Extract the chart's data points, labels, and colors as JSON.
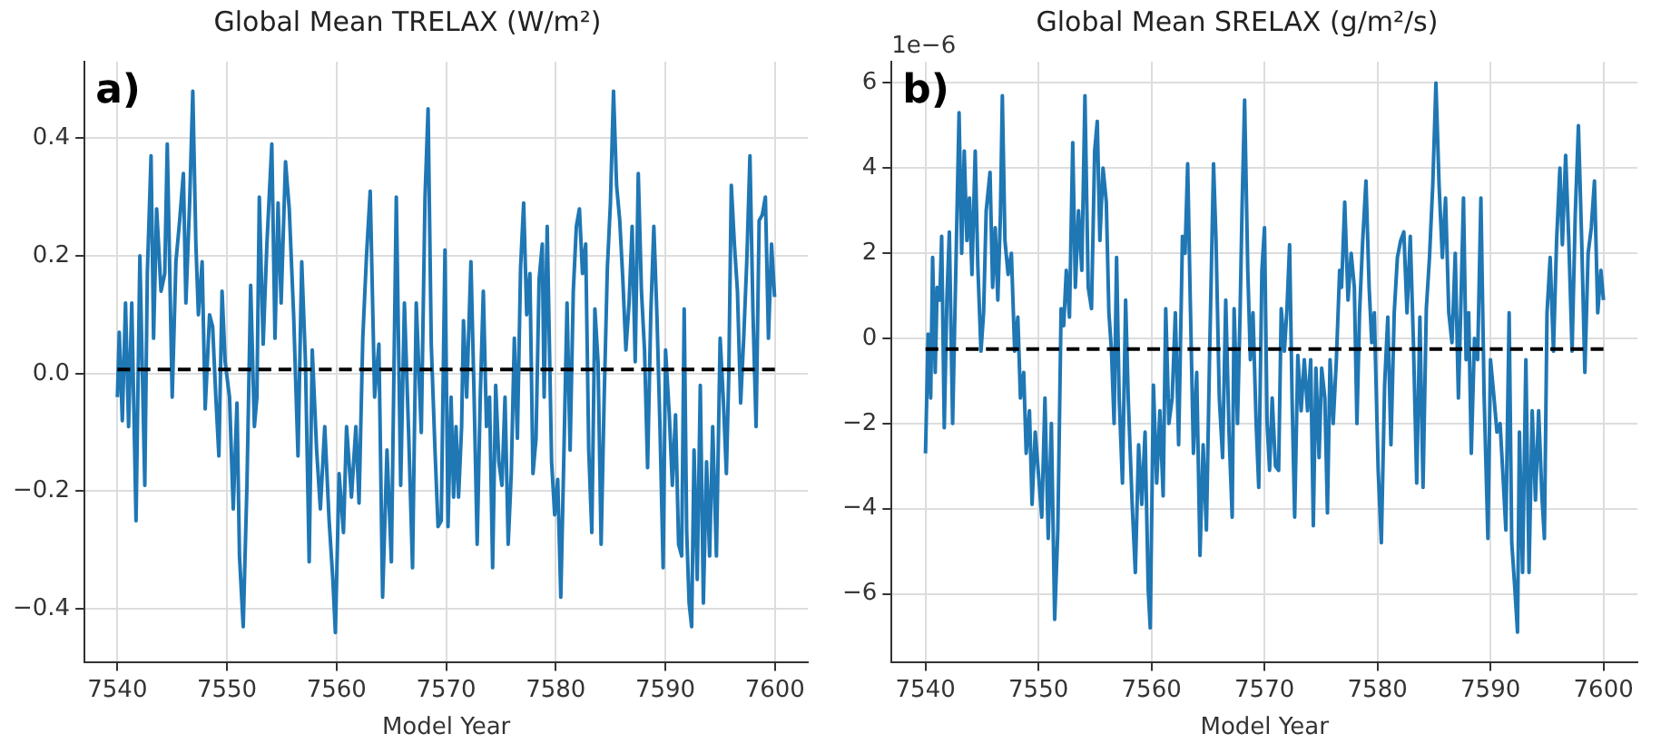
{
  "chart_data": [
    {
      "type": "line",
      "title": "Global Mean TRELAX (W/m²)",
      "xlabel": "Model Year",
      "annotations": [
        "a)"
      ],
      "grid": true,
      "marker": "none",
      "xlim": [
        7537,
        7603
      ],
      "xticks": [
        7540,
        7550,
        7560,
        7570,
        7580,
        7590,
        7600
      ],
      "ylim": [
        -0.49,
        0.53
      ],
      "yticks": [
        {
          "value": -0.4,
          "label": "−0.4"
        },
        {
          "value": -0.2,
          "label": "−0.2"
        },
        {
          "value": 0,
          "label": "0.0"
        },
        0.2,
        0.4
      ],
      "series": [
        {
          "color": "#1f77b4",
          "x": [
            7540.0,
            7540.17,
            7540.45,
            7540.74,
            7541.02,
            7541.31,
            7541.7,
            7542.05,
            7542.5,
            7542.73,
            7543.07,
            7543.3,
            7543.58,
            7543.98,
            7544.32,
            7544.55,
            7545.0,
            7545.34,
            7545.68,
            7546.02,
            7546.25,
            7546.59,
            7546.88,
            7547.16,
            7547.39,
            7547.73,
            7548.01,
            7548.41,
            7548.69,
            7548.98,
            7549.26,
            7549.55,
            7549.83,
            7550.23,
            7550.57,
            7550.91,
            7551.14,
            7551.48,
            7551.82,
            7552.16,
            7552.5,
            7552.73,
            7552.95,
            7553.3,
            7553.64,
            7554.09,
            7554.38,
            7554.66,
            7554.94,
            7555.34,
            7555.68,
            7556.08,
            7556.48,
            7556.82,
            7557.16,
            7557.5,
            7557.78,
            7558.18,
            7558.52,
            7558.92,
            7559.32,
            7559.66,
            7559.89,
            7560.23,
            7560.63,
            7560.91,
            7561.36,
            7561.76,
            7562.05,
            7562.39,
            7562.73,
            7563.07,
            7563.47,
            7563.86,
            7564.2,
            7564.6,
            7565.0,
            7565.45,
            7565.85,
            7566.19,
            7566.59,
            7566.93,
            7567.27,
            7567.73,
            7568.07,
            7568.35,
            7568.64,
            7568.98,
            7569.26,
            7569.55,
            7569.89,
            7570.17,
            7570.45,
            7570.68,
            7570.9,
            7571.13,
            7571.41,
            7571.58,
            7571.87,
            7572.26,
            7572.55,
            7572.83,
            7573.11,
            7573.39,
            7573.68,
            7573.96,
            7574.24,
            7574.52,
            7574.81,
            7575.09,
            7575.37,
            7575.66,
            7575.94,
            7576.22,
            7576.5,
            7576.79,
            7577.07,
            7577.35,
            7577.64,
            7577.92,
            7578.2,
            7578.48,
            7578.77,
            7578.94,
            7579.22,
            7579.62,
            7579.9,
            7580.18,
            7580.46,
            7580.75,
            7581.03,
            7581.31,
            7581.6,
            7581.88,
            7582.16,
            7582.44,
            7582.73,
            7583.01,
            7583.29,
            7583.57,
            7583.86,
            7584.14,
            7584.42,
            7584.71,
            7584.99,
            7585.27,
            7585.55,
            7585.84,
            7586.12,
            7586.4,
            7586.69,
            7586.97,
            7587.25,
            7587.53,
            7587.82,
            7588.1,
            7588.38,
            7588.67,
            7588.95,
            7589.23,
            7589.51,
            7589.8,
            7590.02,
            7590.36,
            7590.64,
            7590.93,
            7591.21,
            7591.49,
            7591.72,
            7591.95,
            7592.17,
            7592.4,
            7592.62,
            7592.91,
            7593.19,
            7593.47,
            7593.76,
            7594.04,
            7594.32,
            7594.66,
            7595.0,
            7595.28,
            7595.57,
            7595.79,
            7596.02,
            7596.3,
            7596.58,
            7596.87,
            7597.15,
            7597.43,
            7597.72,
            7598.0,
            7598.28,
            7598.56,
            7598.85,
            7599.13,
            7599.41,
            7599.69,
            7599.97
          ],
          "values": [
            -0.04,
            0.07,
            -0.08,
            0.12,
            -0.09,
            0.12,
            -0.25,
            0.2,
            -0.19,
            0.17,
            0.37,
            0.06,
            0.28,
            0.14,
            0.17,
            0.39,
            -0.04,
            0.19,
            0.26,
            0.34,
            0.12,
            0.29,
            0.48,
            0.22,
            0.1,
            0.19,
            -0.06,
            0.1,
            0.08,
            -0.04,
            -0.14,
            0.14,
            0.02,
            -0.04,
            -0.23,
            -0.05,
            -0.31,
            -0.43,
            -0.19,
            0.15,
            -0.09,
            -0.04,
            0.3,
            0.05,
            0.22,
            0.39,
            0.06,
            0.29,
            0.12,
            0.36,
            0.28,
            0.1,
            -0.14,
            0.19,
            0.02,
            -0.32,
            0.04,
            -0.13,
            -0.23,
            -0.09,
            -0.25,
            -0.35,
            -0.44,
            -0.17,
            -0.27,
            -0.09,
            -0.21,
            -0.09,
            -0.22,
            0.06,
            0.2,
            0.31,
            -0.04,
            0.05,
            -0.38,
            -0.13,
            -0.32,
            0.3,
            -0.19,
            0.12,
            -0.11,
            -0.33,
            0.12,
            -0.1,
            0.3,
            0.45,
            0.05,
            -0.13,
            -0.26,
            -0.25,
            0.21,
            -0.26,
            -0.04,
            -0.21,
            -0.09,
            -0.21,
            -0.09,
            0.09,
            -0.04,
            0.19,
            -0.04,
            -0.29,
            -0.04,
            0.14,
            -0.09,
            -0.04,
            -0.33,
            -0.02,
            -0.15,
            -0.19,
            -0.04,
            -0.29,
            -0.17,
            0.06,
            -0.11,
            0.18,
            0.29,
            0.1,
            0.17,
            -0.17,
            -0.11,
            0.16,
            0.22,
            -0.04,
            0.25,
            -0.15,
            -0.24,
            -0.18,
            -0.38,
            -0.13,
            0.12,
            -0.13,
            0.14,
            0.25,
            0.28,
            0.17,
            0.22,
            -0.13,
            -0.27,
            0.11,
            0.02,
            -0.29,
            -0.04,
            0.18,
            0.29,
            0.48,
            0.32,
            0.26,
            0.16,
            0.04,
            0.12,
            0.25,
            0.02,
            0.34,
            0.14,
            0.04,
            -0.16,
            0.1,
            0.25,
            0.1,
            -0.09,
            -0.33,
            0.04,
            -0.07,
            -0.19,
            -0.07,
            -0.29,
            -0.31,
            0.11,
            -0.27,
            -0.39,
            -0.43,
            -0.13,
            -0.35,
            -0.02,
            -0.39,
            -0.15,
            -0.31,
            -0.09,
            -0.31,
            0.06,
            -0.04,
            -0.17,
            0.0,
            0.32,
            0.22,
            0.14,
            -0.05,
            0.06,
            0.19,
            0.37,
            0.1,
            -0.09,
            0.26,
            0.27,
            0.3,
            0.06,
            0.22,
            0.13
          ]
        },
        {
          "color": "#000000",
          "line_style": "dashed",
          "x": [
            7540,
            7600
          ],
          "values": [
            0.007,
            0.007
          ]
        }
      ]
    },
    {
      "type": "line",
      "title": "Global Mean SRELAX (g/m²/s)",
      "xlabel": "Model Year",
      "annotations": [
        "b)",
        "1e−6"
      ],
      "grid": true,
      "marker": "none",
      "xlim": [
        7537,
        7603
      ],
      "xticks": [
        7540,
        7550,
        7560,
        7570,
        7580,
        7590,
        7600
      ],
      "ylim": [
        -7.6,
        6.5
      ],
      "yticks": [
        {
          "value": -6,
          "label": "−6"
        },
        {
          "value": -4,
          "label": "−4"
        },
        {
          "value": -2,
          "label": "−2"
        },
        0,
        2,
        4,
        6
      ],
      "series": [
        {
          "color": "#1f77b4",
          "x": [
            7540.0,
            7540.23,
            7540.46,
            7540.63,
            7540.86,
            7541.03,
            7541.26,
            7541.43,
            7541.66,
            7541.89,
            7542.11,
            7542.4,
            7542.69,
            7542.97,
            7543.2,
            7543.43,
            7543.66,
            7543.89,
            7544.11,
            7544.4,
            7544.63,
            7544.91,
            7545.14,
            7545.37,
            7545.71,
            7545.94,
            7546.17,
            7546.4,
            7546.63,
            7546.8,
            7547.03,
            7547.31,
            7547.6,
            7547.89,
            7548.17,
            7548.4,
            7548.69,
            7548.91,
            7549.2,
            7549.43,
            7549.71,
            7550.0,
            7550.29,
            7550.57,
            7550.86,
            7551.14,
            7551.43,
            7551.71,
            7552.0,
            7552.23,
            7552.46,
            7552.74,
            7553.03,
            7553.26,
            7553.54,
            7553.83,
            7554.11,
            7554.4,
            7554.69,
            7554.97,
            7555.2,
            7555.43,
            7555.71,
            7556.0,
            7556.23,
            7556.46,
            7556.69,
            7556.91,
            7557.14,
            7557.43,
            7557.71,
            7557.94,
            7558.29,
            7558.57,
            7558.86,
            7559.14,
            7559.43,
            7559.71,
            7559.89,
            7560.17,
            7560.46,
            7560.74,
            7561.03,
            7561.26,
            7561.54,
            7561.83,
            7562.11,
            7562.4,
            7562.74,
            7562.97,
            7563.2,
            7563.43,
            7563.71,
            7564.0,
            7564.29,
            7564.57,
            7564.86,
            7565.14,
            7565.49,
            7565.71,
            7566.0,
            7566.29,
            7566.57,
            7566.86,
            7567.14,
            7567.31,
            7567.61,
            7567.84,
            7568.01,
            7568.24,
            7568.52,
            7568.75,
            7568.98,
            7569.26,
            7569.49,
            7569.77,
            7570.0,
            7570.23,
            7570.45,
            7570.68,
            7570.97,
            7571.25,
            7571.48,
            7571.76,
            7571.99,
            7572.22,
            7572.44,
            7572.67,
            7572.95,
            7573.24,
            7573.52,
            7573.81,
            7574.09,
            7574.32,
            7574.55,
            7574.83,
            7575.06,
            7575.34,
            7575.57,
            7575.8,
            7576.08,
            7576.36,
            7576.65,
            7576.82,
            7577.1,
            7577.39,
            7577.67,
            7577.95,
            7578.18,
            7578.41,
            7578.69,
            7578.98,
            7579.26,
            7579.49,
            7579.72,
            7580.06,
            7580.34,
            7580.63,
            7580.91,
            7581.19,
            7581.48,
            7581.76,
            7582.05,
            7582.33,
            7582.61,
            7582.9,
            7583.18,
            7583.47,
            7583.75,
            7584.03,
            7584.32,
            7584.6,
            7584.89,
            7585.17,
            7585.45,
            7585.74,
            7586.02,
            7586.31,
            7586.59,
            7586.88,
            7587.16,
            7587.39,
            7587.61,
            7587.84,
            7588.07,
            7588.3,
            7588.58,
            7588.86,
            7589.15,
            7589.43,
            7589.77,
            7590.0,
            7590.28,
            7590.57,
            7590.85,
            7591.14,
            7591.36,
            7591.65,
            7591.88,
            7592.16,
            7592.39,
            7592.56,
            7592.84,
            7593.13,
            7593.41,
            7593.69,
            7593.98,
            7594.26,
            7594.55,
            7594.77,
            7595.0,
            7595.28,
            7595.57,
            7595.85,
            7596.14,
            7596.36,
            7596.65,
            7596.93,
            7597.22,
            7597.5,
            7597.78,
            7598.07,
            7598.35,
            7598.64,
            7598.92,
            7599.2,
            7599.49,
            7599.77,
            7600.0
          ],
          "values": [
            -2.7,
            0.1,
            -1.4,
            1.9,
            -0.8,
            1.2,
            0.9,
            2.4,
            -2.1,
            0.9,
            2.5,
            -2.0,
            1.7,
            5.3,
            2.0,
            4.4,
            2.3,
            3.3,
            1.5,
            4.4,
            1.7,
            -0.3,
            0.6,
            3.0,
            3.9,
            1.2,
            2.6,
            0.9,
            2.9,
            5.7,
            2.3,
            1.5,
            2.0,
            -0.3,
            0.5,
            -1.4,
            -0.8,
            -2.7,
            -1.7,
            -3.9,
            -2.2,
            -3.2,
            -4.2,
            -1.4,
            -4.7,
            -2.0,
            -6.6,
            -4.5,
            0.7,
            0.3,
            1.6,
            0.5,
            4.6,
            1.2,
            3.0,
            1.6,
            5.7,
            1.2,
            0.7,
            4.4,
            5.1,
            2.3,
            4.0,
            3.2,
            0.6,
            -0.3,
            -2.0,
            1.9,
            -1.4,
            -3.4,
            0.9,
            -1.4,
            -3.9,
            -5.5,
            -2.5,
            -3.9,
            -2.2,
            -5.9,
            -6.8,
            -1.1,
            -3.4,
            -1.7,
            -3.7,
            0.7,
            -2.0,
            -1.4,
            0.6,
            -2.5,
            2.4,
            2.0,
            4.1,
            0.9,
            -2.7,
            -0.8,
            -5.1,
            -2.5,
            -4.5,
            -0.4,
            4.1,
            2.3,
            -1.4,
            -2.8,
            0.9,
            -2.2,
            -4.2,
            0.7,
            -2.0,
            0.6,
            3.0,
            5.6,
            1.6,
            -0.5,
            0.6,
            -2.0,
            -3.5,
            1.6,
            2.6,
            -2.0,
            -3.1,
            -1.4,
            -3.0,
            -3.1,
            0.7,
            -0.3,
            0.7,
            2.2,
            -1.4,
            -4.2,
            -0.4,
            -1.7,
            -0.5,
            -1.7,
            -0.5,
            -4.4,
            -0.7,
            -2.8,
            -0.7,
            -1.4,
            -4.1,
            -0.5,
            -2.0,
            -0.5,
            1.6,
            1.2,
            3.2,
            0.9,
            2.0,
            1.2,
            -2.0,
            0.6,
            2.3,
            3.7,
            1.2,
            -0.1,
            0.6,
            -3.1,
            -4.8,
            -1.1,
            0.5,
            -2.5,
            0.6,
            1.9,
            2.3,
            2.5,
            0.6,
            2.4,
            -0.1,
            -3.4,
            0.5,
            -3.5,
            0.7,
            1.9,
            3.6,
            6.0,
            3.6,
            1.9,
            3.3,
            0.6,
            -0.1,
            2.0,
            -1.4,
            0.9,
            3.3,
            -0.5,
            0.6,
            -2.7,
            0.0,
            -0.5,
            3.3,
            -1.3,
            -4.7,
            -0.5,
            -1.3,
            -2.2,
            -2.0,
            -3.4,
            -4.5,
            0.6,
            -4.8,
            -5.9,
            -6.9,
            -2.2,
            -5.5,
            -0.5,
            -5.5,
            -1.7,
            -3.8,
            -1.7,
            -3.7,
            -4.7,
            0.6,
            1.9,
            -0.3,
            2.3,
            4.0,
            2.2,
            4.3,
            2.3,
            -0.3,
            2.9,
            5.0,
            2.3,
            -0.8,
            2.0,
            2.6,
            3.7,
            0.6,
            1.6,
            0.9
          ]
        },
        {
          "color": "#000000",
          "line_style": "dashed",
          "x": [
            7540,
            7600
          ],
          "values": [
            -0.25,
            -0.25
          ]
        }
      ]
    }
  ]
}
